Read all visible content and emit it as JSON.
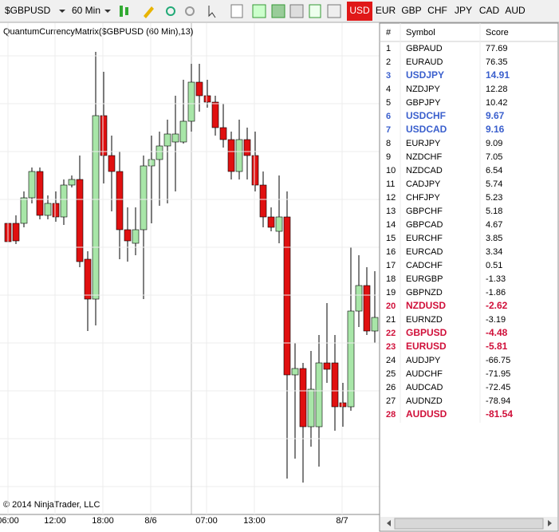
{
  "toolbar": {
    "instrument": "$GBPUSD",
    "interval": "60 Min",
    "currencies": [
      "USD",
      "EUR",
      "GBP",
      "CHF",
      "JPY",
      "CAD",
      "AUD"
    ],
    "active": "USD"
  },
  "chart": {
    "indicator": "QuantumCurrencyMatrix($GBPUSD (60 Min),13)",
    "x_labels": [
      "06:00",
      "12:00",
      "18:00",
      "8/6",
      "07:00",
      "13:00",
      "8/7"
    ],
    "copyright": "© 2014 NinjaTrader, LLC"
  },
  "table": {
    "headers": [
      "#",
      "Symbol",
      "Score"
    ],
    "rows": [
      {
        "rank": 1,
        "symbol": "GBPAUD",
        "score": 77.69
      },
      {
        "rank": 2,
        "symbol": "EURAUD",
        "score": 76.35
      },
      {
        "rank": 3,
        "symbol": "USDJPY",
        "score": 14.91,
        "color": "#3a5fcd"
      },
      {
        "rank": 4,
        "symbol": "NZDJPY",
        "score": 12.28
      },
      {
        "rank": 5,
        "symbol": "GBPJPY",
        "score": 10.42
      },
      {
        "rank": 6,
        "symbol": "USDCHF",
        "score": 9.67,
        "color": "#3a5fcd"
      },
      {
        "rank": 7,
        "symbol": "USDCAD",
        "score": 9.16,
        "color": "#3a5fcd"
      },
      {
        "rank": 8,
        "symbol": "EURJPY",
        "score": 9.09
      },
      {
        "rank": 9,
        "symbol": "NZDCHF",
        "score": 7.05
      },
      {
        "rank": 10,
        "symbol": "NZDCAD",
        "score": 6.54
      },
      {
        "rank": 11,
        "symbol": "CADJPY",
        "score": 5.74
      },
      {
        "rank": 12,
        "symbol": "CHFJPY",
        "score": 5.23
      },
      {
        "rank": 13,
        "symbol": "GBPCHF",
        "score": 5.18
      },
      {
        "rank": 14,
        "symbol": "GBPCAD",
        "score": 4.67
      },
      {
        "rank": 15,
        "symbol": "EURCHF",
        "score": 3.85
      },
      {
        "rank": 16,
        "symbol": "EURCAD",
        "score": 3.34
      },
      {
        "rank": 17,
        "symbol": "CADCHF",
        "score": 0.51
      },
      {
        "rank": 18,
        "symbol": "EURGBP",
        "score": -1.33
      },
      {
        "rank": 19,
        "symbol": "GBPNZD",
        "score": -1.86
      },
      {
        "rank": 20,
        "symbol": "NZDUSD",
        "score": -2.62,
        "color": "#d0103a"
      },
      {
        "rank": 21,
        "symbol": "EURNZD",
        "score": -3.19
      },
      {
        "rank": 22,
        "symbol": "GBPUSD",
        "score": -4.48,
        "color": "#d0103a"
      },
      {
        "rank": 23,
        "symbol": "EURUSD",
        "score": -5.81,
        "color": "#d0103a"
      },
      {
        "rank": 24,
        "symbol": "AUDJPY",
        "score": -66.75
      },
      {
        "rank": 25,
        "symbol": "AUDCHF",
        "score": -71.95
      },
      {
        "rank": 26,
        "symbol": "AUDCAD",
        "score": -72.45
      },
      {
        "rank": 27,
        "symbol": "AUDNZD",
        "score": -78.94
      },
      {
        "rank": 28,
        "symbol": "AUDUSD",
        "score": -81.54,
        "color": "#d0103a"
      }
    ]
  }
}
